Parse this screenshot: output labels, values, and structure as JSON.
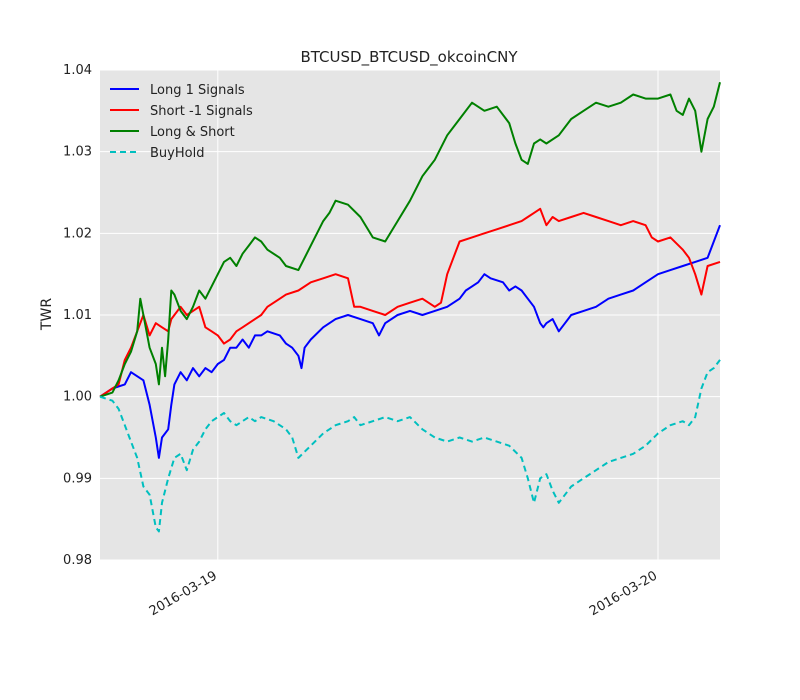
{
  "chart_data": {
    "type": "line",
    "title": "BTCUSD_BTCUSD_okcoinCNY",
    "xlabel": "",
    "ylabel": "TWR",
    "x_ticks": [
      "2016-03-19",
      "2016-03-20"
    ],
    "ylim": [
      0.98,
      1.04
    ],
    "y_ticks": [
      "0.98",
      "0.99",
      "1.00",
      "1.01",
      "1.02",
      "1.03",
      "1.04"
    ],
    "grid": true,
    "background": "#e5e5e5",
    "legend_position": "top-left",
    "series": [
      {
        "name": "Long 1 Signals",
        "color": "#0000ff",
        "dash": "solid",
        "points": [
          [
            0.0,
            1.0
          ],
          [
            0.02,
            1.001
          ],
          [
            0.04,
            1.0015
          ],
          [
            0.05,
            1.003
          ],
          [
            0.07,
            1.002
          ],
          [
            0.08,
            0.999
          ],
          [
            0.09,
            0.995
          ],
          [
            0.095,
            0.9925
          ],
          [
            0.1,
            0.995
          ],
          [
            0.11,
            0.996
          ],
          [
            0.115,
            0.999
          ],
          [
            0.12,
            1.0015
          ],
          [
            0.13,
            1.003
          ],
          [
            0.14,
            1.002
          ],
          [
            0.15,
            1.0035
          ],
          [
            0.16,
            1.0025
          ],
          [
            0.17,
            1.0035
          ],
          [
            0.18,
            1.003
          ],
          [
            0.19,
            1.004
          ],
          [
            0.2,
            1.0045
          ],
          [
            0.21,
            1.006
          ],
          [
            0.22,
            1.006
          ],
          [
            0.23,
            1.007
          ],
          [
            0.24,
            1.006
          ],
          [
            0.25,
            1.0075
          ],
          [
            0.26,
            1.0075
          ],
          [
            0.27,
            1.008
          ],
          [
            0.29,
            1.0075
          ],
          [
            0.3,
            1.0065
          ],
          [
            0.31,
            1.006
          ],
          [
            0.32,
            1.005
          ],
          [
            0.325,
            1.0035
          ],
          [
            0.33,
            1.006
          ],
          [
            0.34,
            1.007
          ],
          [
            0.36,
            1.0085
          ],
          [
            0.38,
            1.0095
          ],
          [
            0.4,
            1.01
          ],
          [
            0.42,
            1.0095
          ],
          [
            0.44,
            1.009
          ],
          [
            0.45,
            1.0075
          ],
          [
            0.46,
            1.009
          ],
          [
            0.48,
            1.01
          ],
          [
            0.5,
            1.0105
          ],
          [
            0.52,
            1.01
          ],
          [
            0.54,
            1.0105
          ],
          [
            0.56,
            1.011
          ],
          [
            0.58,
            1.012
          ],
          [
            0.59,
            1.013
          ],
          [
            0.6,
            1.0135
          ],
          [
            0.61,
            1.014
          ],
          [
            0.62,
            1.015
          ],
          [
            0.63,
            1.0145
          ],
          [
            0.65,
            1.014
          ],
          [
            0.66,
            1.013
          ],
          [
            0.67,
            1.0135
          ],
          [
            0.68,
            1.013
          ],
          [
            0.69,
            1.012
          ],
          [
            0.7,
            1.011
          ],
          [
            0.71,
            1.009
          ],
          [
            0.715,
            1.0085
          ],
          [
            0.72,
            1.009
          ],
          [
            0.73,
            1.0095
          ],
          [
            0.74,
            1.008
          ],
          [
            0.75,
            1.009
          ],
          [
            0.76,
            1.01
          ],
          [
            0.78,
            1.0105
          ],
          [
            0.8,
            1.011
          ],
          [
            0.82,
            1.012
          ],
          [
            0.84,
            1.0125
          ],
          [
            0.86,
            1.013
          ],
          [
            0.88,
            1.014
          ],
          [
            0.9,
            1.015
          ],
          [
            0.92,
            1.0155
          ],
          [
            0.94,
            1.016
          ],
          [
            0.96,
            1.0165
          ],
          [
            0.98,
            1.017
          ],
          [
            0.99,
            1.019
          ],
          [
            1.0,
            1.021
          ]
        ]
      },
      {
        "name": "Short -1 Signals",
        "color": "#ff0000",
        "dash": "solid",
        "points": [
          [
            0.0,
            1.0
          ],
          [
            0.02,
            1.001
          ],
          [
            0.03,
            1.0015
          ],
          [
            0.04,
            1.0045
          ],
          [
            0.05,
            1.006
          ],
          [
            0.06,
            1.008
          ],
          [
            0.07,
            1.01
          ],
          [
            0.08,
            1.0075
          ],
          [
            0.09,
            1.009
          ],
          [
            0.1,
            1.0085
          ],
          [
            0.11,
            1.008
          ],
          [
            0.115,
            1.0095
          ],
          [
            0.12,
            1.01
          ],
          [
            0.13,
            1.011
          ],
          [
            0.14,
            1.01
          ],
          [
            0.15,
            1.0105
          ],
          [
            0.16,
            1.011
          ],
          [
            0.17,
            1.0085
          ],
          [
            0.18,
            1.008
          ],
          [
            0.19,
            1.0075
          ],
          [
            0.2,
            1.0065
          ],
          [
            0.21,
            1.007
          ],
          [
            0.22,
            1.008
          ],
          [
            0.23,
            1.0085
          ],
          [
            0.24,
            1.009
          ],
          [
            0.25,
            1.0095
          ],
          [
            0.26,
            1.01
          ],
          [
            0.27,
            1.011
          ],
          [
            0.29,
            1.012
          ],
          [
            0.3,
            1.0125
          ],
          [
            0.32,
            1.013
          ],
          [
            0.34,
            1.014
          ],
          [
            0.36,
            1.0145
          ],
          [
            0.38,
            1.015
          ],
          [
            0.4,
            1.0145
          ],
          [
            0.41,
            1.011
          ],
          [
            0.42,
            1.011
          ],
          [
            0.44,
            1.0105
          ],
          [
            0.46,
            1.01
          ],
          [
            0.48,
            1.011
          ],
          [
            0.5,
            1.0115
          ],
          [
            0.52,
            1.012
          ],
          [
            0.54,
            1.011
          ],
          [
            0.55,
            1.0115
          ],
          [
            0.56,
            1.015
          ],
          [
            0.57,
            1.017
          ],
          [
            0.58,
            1.019
          ],
          [
            0.6,
            1.0195
          ],
          [
            0.62,
            1.02
          ],
          [
            0.64,
            1.0205
          ],
          [
            0.66,
            1.021
          ],
          [
            0.68,
            1.0215
          ],
          [
            0.69,
            1.022
          ],
          [
            0.7,
            1.0225
          ],
          [
            0.71,
            1.023
          ],
          [
            0.72,
            1.021
          ],
          [
            0.73,
            1.022
          ],
          [
            0.74,
            1.0215
          ],
          [
            0.76,
            1.022
          ],
          [
            0.78,
            1.0225
          ],
          [
            0.8,
            1.022
          ],
          [
            0.82,
            1.0215
          ],
          [
            0.84,
            1.021
          ],
          [
            0.86,
            1.0215
          ],
          [
            0.88,
            1.021
          ],
          [
            0.89,
            1.0195
          ],
          [
            0.9,
            1.019
          ],
          [
            0.92,
            1.0195
          ],
          [
            0.94,
            1.018
          ],
          [
            0.95,
            1.017
          ],
          [
            0.96,
            1.015
          ],
          [
            0.97,
            1.0125
          ],
          [
            0.98,
            1.016
          ],
          [
            1.0,
            1.0165
          ]
        ]
      },
      {
        "name": "Long & Short",
        "color": "#008000",
        "dash": "solid",
        "points": [
          [
            0.0,
            1.0
          ],
          [
            0.02,
            1.0005
          ],
          [
            0.03,
            1.002
          ],
          [
            0.04,
            1.004
          ],
          [
            0.05,
            1.0055
          ],
          [
            0.06,
            1.008
          ],
          [
            0.065,
            1.012
          ],
          [
            0.07,
            1.01
          ],
          [
            0.08,
            1.006
          ],
          [
            0.09,
            1.004
          ],
          [
            0.095,
            1.0015
          ],
          [
            0.1,
            1.006
          ],
          [
            0.105,
            1.0025
          ],
          [
            0.11,
            1.007
          ],
          [
            0.115,
            1.013
          ],
          [
            0.12,
            1.0125
          ],
          [
            0.13,
            1.0105
          ],
          [
            0.14,
            1.0095
          ],
          [
            0.15,
            1.011
          ],
          [
            0.16,
            1.013
          ],
          [
            0.17,
            1.012
          ],
          [
            0.18,
            1.0135
          ],
          [
            0.19,
            1.015
          ],
          [
            0.2,
            1.0165
          ],
          [
            0.21,
            1.017
          ],
          [
            0.22,
            1.016
          ],
          [
            0.23,
            1.0175
          ],
          [
            0.24,
            1.0185
          ],
          [
            0.25,
            1.0195
          ],
          [
            0.26,
            1.019
          ],
          [
            0.27,
            1.018
          ],
          [
            0.29,
            1.017
          ],
          [
            0.3,
            1.016
          ],
          [
            0.32,
            1.0155
          ],
          [
            0.34,
            1.0185
          ],
          [
            0.36,
            1.0215
          ],
          [
            0.37,
            1.0225
          ],
          [
            0.38,
            1.024
          ],
          [
            0.4,
            1.0235
          ],
          [
            0.42,
            1.022
          ],
          [
            0.44,
            1.0195
          ],
          [
            0.46,
            1.019
          ],
          [
            0.48,
            1.0215
          ],
          [
            0.5,
            1.024
          ],
          [
            0.52,
            1.027
          ],
          [
            0.53,
            1.028
          ],
          [
            0.54,
            1.029
          ],
          [
            0.56,
            1.032
          ],
          [
            0.58,
            1.034
          ],
          [
            0.6,
            1.036
          ],
          [
            0.62,
            1.035
          ],
          [
            0.64,
            1.0355
          ],
          [
            0.66,
            1.0335
          ],
          [
            0.67,
            1.031
          ],
          [
            0.68,
            1.029
          ],
          [
            0.69,
            1.0285
          ],
          [
            0.7,
            1.031
          ],
          [
            0.71,
            1.0315
          ],
          [
            0.72,
            1.031
          ],
          [
            0.74,
            1.032
          ],
          [
            0.76,
            1.034
          ],
          [
            0.78,
            1.035
          ],
          [
            0.8,
            1.036
          ],
          [
            0.82,
            1.0355
          ],
          [
            0.84,
            1.036
          ],
          [
            0.86,
            1.037
          ],
          [
            0.88,
            1.0365
          ],
          [
            0.9,
            1.0365
          ],
          [
            0.92,
            1.037
          ],
          [
            0.93,
            1.035
          ],
          [
            0.94,
            1.0345
          ],
          [
            0.95,
            1.0365
          ],
          [
            0.96,
            1.035
          ],
          [
            0.97,
            1.03
          ],
          [
            0.98,
            1.034
          ],
          [
            0.99,
            1.0355
          ],
          [
            1.0,
            1.0385
          ]
        ]
      },
      {
        "name": "BuyHold",
        "color": "#00bfbf",
        "dash": "dashed",
        "points": [
          [
            0.0,
            1.0
          ],
          [
            0.02,
            0.9995
          ],
          [
            0.03,
            0.9985
          ],
          [
            0.04,
            0.9965
          ],
          [
            0.05,
            0.9945
          ],
          [
            0.06,
            0.9925
          ],
          [
            0.07,
            0.989
          ],
          [
            0.08,
            0.988
          ],
          [
            0.09,
            0.984
          ],
          [
            0.095,
            0.9835
          ],
          [
            0.1,
            0.987
          ],
          [
            0.11,
            0.99
          ],
          [
            0.12,
            0.9925
          ],
          [
            0.13,
            0.993
          ],
          [
            0.14,
            0.991
          ],
          [
            0.15,
            0.9935
          ],
          [
            0.16,
            0.9945
          ],
          [
            0.17,
            0.996
          ],
          [
            0.18,
            0.997
          ],
          [
            0.19,
            0.9975
          ],
          [
            0.2,
            0.998
          ],
          [
            0.21,
            0.997
          ],
          [
            0.22,
            0.9965
          ],
          [
            0.24,
            0.9975
          ],
          [
            0.25,
            0.997
          ],
          [
            0.26,
            0.9975
          ],
          [
            0.28,
            0.997
          ],
          [
            0.3,
            0.996
          ],
          [
            0.31,
            0.995
          ],
          [
            0.32,
            0.9925
          ],
          [
            0.34,
            0.994
          ],
          [
            0.36,
            0.9955
          ],
          [
            0.38,
            0.9965
          ],
          [
            0.4,
            0.997
          ],
          [
            0.41,
            0.9975
          ],
          [
            0.42,
            0.9965
          ],
          [
            0.44,
            0.997
          ],
          [
            0.46,
            0.9975
          ],
          [
            0.48,
            0.997
          ],
          [
            0.5,
            0.9975
          ],
          [
            0.52,
            0.996
          ],
          [
            0.54,
            0.995
          ],
          [
            0.56,
            0.9945
          ],
          [
            0.58,
            0.995
          ],
          [
            0.6,
            0.9945
          ],
          [
            0.62,
            0.995
          ],
          [
            0.64,
            0.9945
          ],
          [
            0.66,
            0.994
          ],
          [
            0.68,
            0.9925
          ],
          [
            0.69,
            0.99
          ],
          [
            0.7,
            0.987
          ],
          [
            0.71,
            0.99
          ],
          [
            0.72,
            0.9905
          ],
          [
            0.73,
            0.9885
          ],
          [
            0.74,
            0.987
          ],
          [
            0.75,
            0.988
          ],
          [
            0.76,
            0.989
          ],
          [
            0.78,
            0.99
          ],
          [
            0.8,
            0.991
          ],
          [
            0.82,
            0.992
          ],
          [
            0.84,
            0.9925
          ],
          [
            0.86,
            0.993
          ],
          [
            0.88,
            0.994
          ],
          [
            0.9,
            0.9955
          ],
          [
            0.92,
            0.9965
          ],
          [
            0.94,
            0.997
          ],
          [
            0.95,
            0.9965
          ],
          [
            0.96,
            0.9975
          ],
          [
            0.97,
            1.001
          ],
          [
            0.98,
            1.003
          ],
          [
            0.99,
            1.0035
          ],
          [
            1.0,
            1.0045
          ]
        ]
      }
    ]
  }
}
